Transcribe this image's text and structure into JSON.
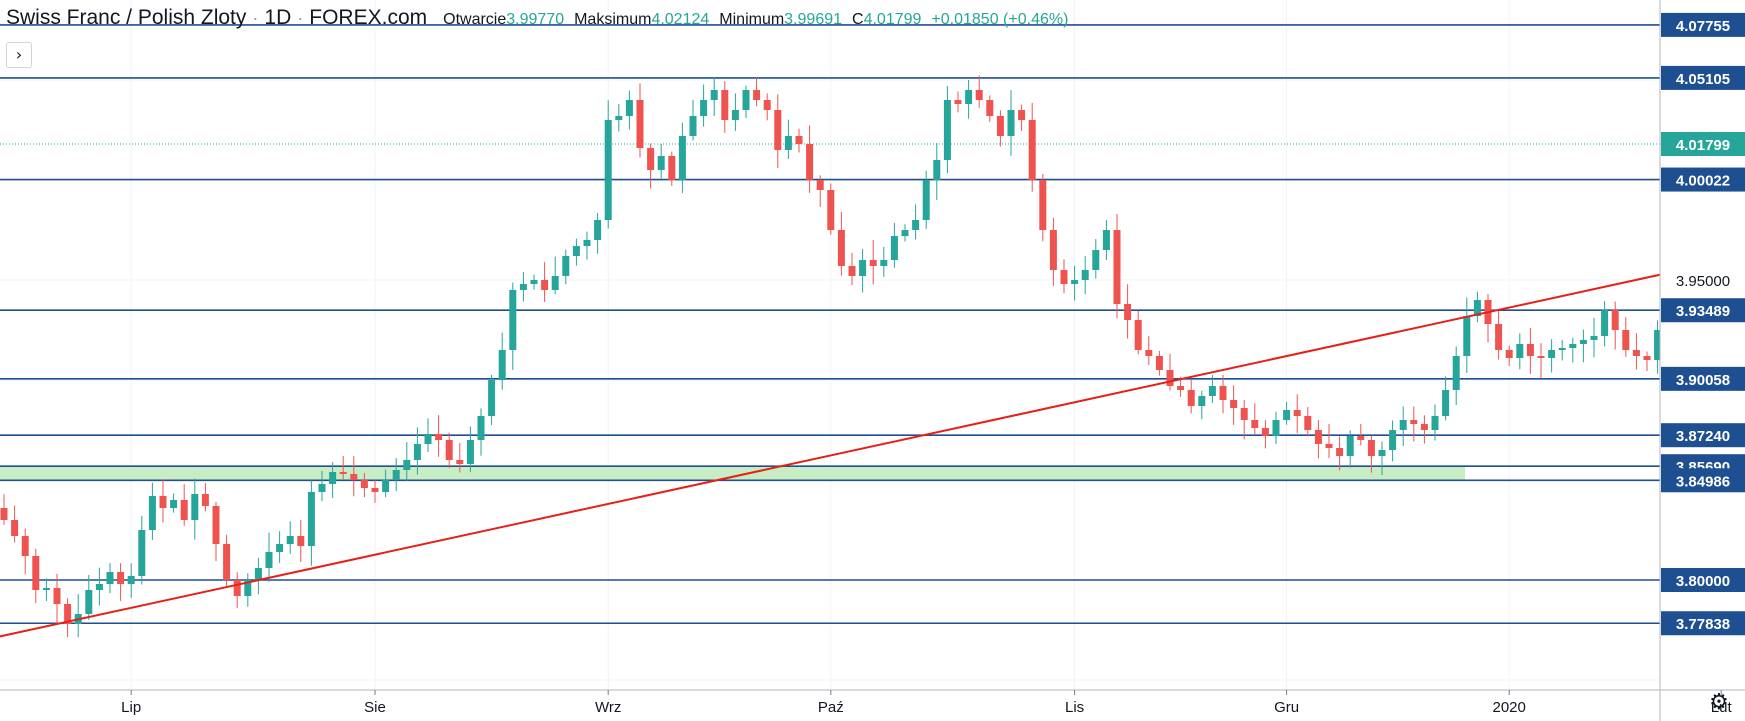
{
  "header": {
    "title": "Swiss Franc / Polish Zloty",
    "interval": "1D",
    "source": "FOREX.com",
    "ohlc": [
      {
        "label": "Otwarcie",
        "value": "3.99770"
      },
      {
        "label": "Maksimum",
        "value": "4.02124"
      },
      {
        "label": "Minimum",
        "value": "3.99691"
      },
      {
        "label": "C",
        "value": "4.01799"
      },
      {
        "label": "",
        "value": "+0.01850 (+0.46%)"
      }
    ]
  },
  "icons": {
    "collapse": "chevron-right-icon",
    "settings": "gear-icon"
  },
  "colors": {
    "up": "#26a69a",
    "down": "#ef5350",
    "level_line": "#1e4f91",
    "price_label_bg": "#1e4f91",
    "current_price_bg": "#26a69a",
    "trendline": "#e81f17",
    "support_zone": "#c8ecc4",
    "grid": "#f0f3fa"
  },
  "chart_data": {
    "type": "candlestick",
    "symbol": "CHFPLN",
    "ylim": [
      3.745,
      4.09
    ],
    "x_ticks": [
      {
        "label": "Lip",
        "index": 12
      },
      {
        "label": "Sie",
        "index": 35
      },
      {
        "label": "Wrz",
        "index": 57
      },
      {
        "label": "Paź",
        "index": 78
      },
      {
        "label": "Lis",
        "index": 101
      },
      {
        "label": "Gru",
        "index": 121
      },
      {
        "label": "2020",
        "index": 142
      },
      {
        "label": "Lut",
        "index": 162
      }
    ],
    "y_ticks": [
      "3.95000"
    ],
    "price_levels": [
      "4.07755",
      "4.05105",
      "4.00022",
      "3.93489",
      "3.90058",
      "3.87240",
      "3.85690",
      "3.84986",
      "3.80000",
      "3.77838"
    ],
    "current_price": "4.01799",
    "support_zone": [
      3.84986,
      3.8569
    ],
    "trendline": [
      {
        "index": 5,
        "price": 3.778
      },
      {
        "index": 160,
        "price": 3.957
      }
    ],
    "close": [
      3.83,
      3.822,
      3.812,
      3.795,
      3.796,
      3.788,
      3.778,
      3.783,
      3.795,
      3.798,
      3.804,
      3.798,
      3.802,
      3.825,
      3.842,
      3.836,
      3.84,
      3.83,
      3.843,
      3.837,
      3.818,
      3.8,
      3.792,
      3.8,
      3.806,
      3.814,
      3.818,
      3.822,
      3.817,
      3.844,
      3.848,
      3.854,
      3.853,
      3.85,
      3.846,
      3.844,
      3.85,
      3.855,
      3.86,
      3.868,
      3.873,
      3.87,
      3.86,
      3.858,
      3.87,
      3.882,
      3.9,
      3.915,
      3.945,
      3.948,
      3.95,
      3.945,
      3.952,
      3.962,
      3.967,
      3.97,
      3.98,
      4.03,
      4.032,
      4.04,
      4.016,
      4.005,
      4.012,
      4.0,
      4.022,
      4.032,
      4.04,
      4.045,
      4.03,
      4.035,
      4.045,
      4.04,
      4.035,
      4.015,
      4.022,
      4.018,
      4.0,
      3.995,
      3.975,
      3.957,
      3.952,
      3.96,
      3.957,
      3.96,
      3.972,
      3.975,
      3.98,
      4.0,
      4.01,
      4.04,
      4.038,
      4.045,
      4.04,
      4.032,
      4.022,
      4.035,
      4.03,
      4.0,
      3.975,
      3.955,
      3.948,
      3.95,
      3.955,
      3.965,
      3.975,
      3.938,
      3.93,
      3.915,
      3.912,
      3.905,
      3.897,
      3.895,
      3.887,
      3.892,
      3.897,
      3.89,
      3.886,
      3.88,
      3.876,
      3.872,
      3.88,
      3.885,
      3.882,
      3.875,
      3.868,
      3.866,
      3.862,
      3.872,
      3.87,
      3.862,
      3.865,
      3.875,
      3.88,
      3.878,
      3.875,
      3.882,
      3.895,
      3.912,
      3.932,
      3.94,
      3.928,
      3.915,
      3.911,
      3.918,
      3.912,
      3.911,
      3.915,
      3.916,
      3.918,
      3.92,
      3.922,
      3.935,
      3.925,
      3.915,
      3.912,
      3.91,
      3.925,
      3.928,
      3.936,
      3.925,
      3.917,
      3.912,
      3.9,
      3.895,
      3.905,
      3.917,
      3.92,
      3.922,
      3.925,
      3.92,
      3.912,
      3.917,
      3.925,
      3.92,
      3.915,
      3.925,
      3.93,
      3.914,
      3.91,
      3.905,
      3.918,
      3.927,
      3.922,
      3.915,
      3.915,
      3.925,
      3.94,
      3.95,
      3.952,
      3.942,
      3.938,
      3.948,
      3.96,
      3.975,
      3.988,
      3.999,
      4.0,
      3.985,
      4.0,
      4.018
    ]
  }
}
